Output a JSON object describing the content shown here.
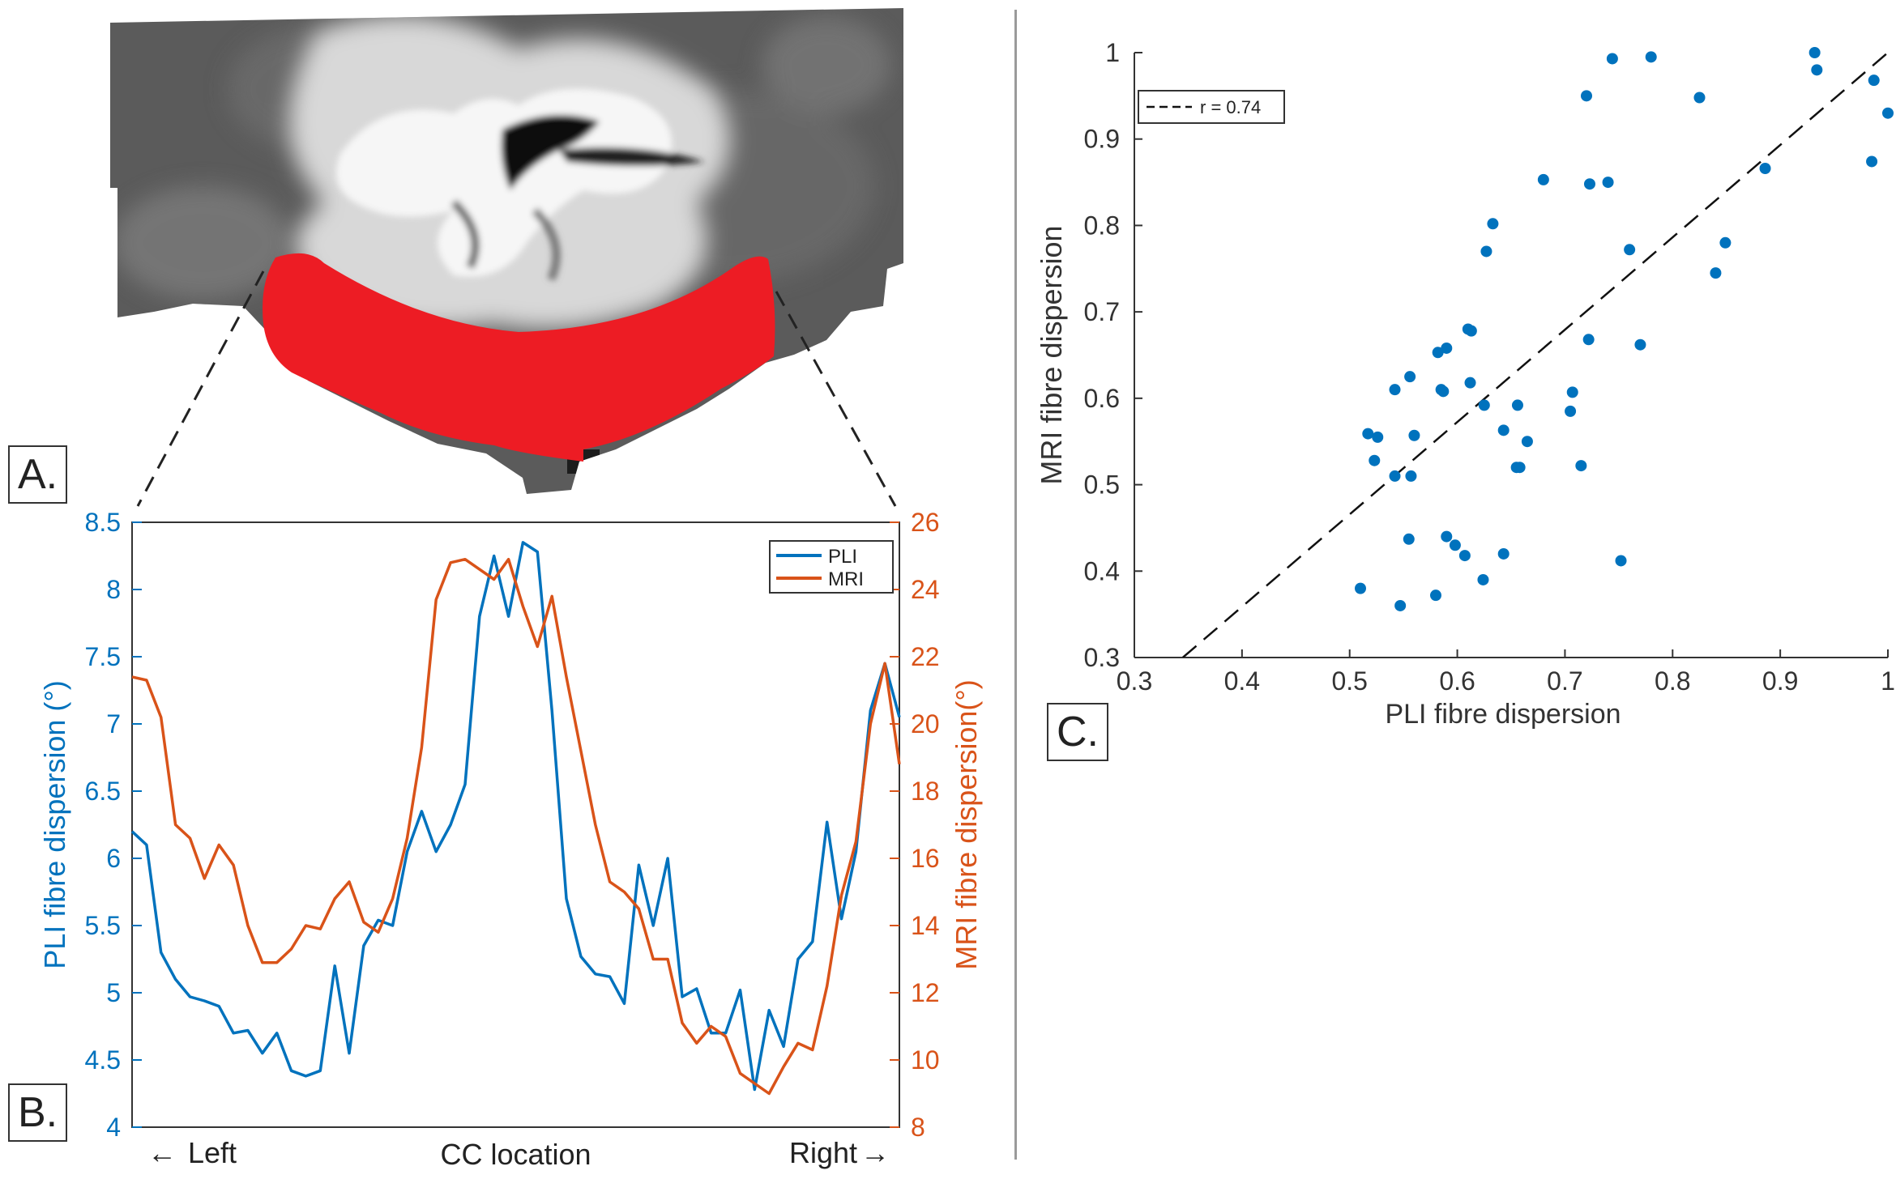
{
  "panels": {
    "a_label": "A.",
    "b_label": "B.",
    "c_label": "C."
  },
  "colors": {
    "pli": "#0072BD",
    "mri": "#D95319",
    "roi": "#ed1c24",
    "axis": "#333333",
    "scatter": "#0072BD"
  },
  "chart_data": [
    {
      "type": "line",
      "id": "panel-b",
      "xlabel": "CC location",
      "x_left_label": "Left",
      "x_right_label": "Right",
      "left_arrow": "←",
      "right_arrow": "→",
      "ylabel_left": "PLI fibre dispersion (°)",
      "ylabel_right": "MRI fibre dispersion(°)",
      "ylim_left": [
        4,
        8.5
      ],
      "ylim_right": [
        8,
        26
      ],
      "yticks_left": [
        "4",
        "4.5",
        "5",
        "5.5",
        "6",
        "6.5",
        "7",
        "7.5",
        "8",
        "8.5"
      ],
      "yticks_right": [
        "8",
        "10",
        "12",
        "14",
        "16",
        "18",
        "20",
        "22",
        "24",
        "26"
      ],
      "legend": [
        "PLI",
        "MRI"
      ],
      "series": [
        {
          "name": "PLI",
          "axis": "left",
          "values": [
            6.2,
            6.1,
            5.3,
            5.1,
            4.97,
            4.94,
            4.9,
            4.7,
            4.72,
            4.55,
            4.7,
            4.42,
            4.38,
            4.42,
            5.2,
            4.55,
            5.35,
            5.54,
            5.5,
            6.05,
            6.35,
            6.05,
            6.25,
            6.55,
            7.8,
            8.25,
            7.8,
            8.35,
            8.28,
            7.1,
            5.7,
            5.27,
            5.14,
            5.12,
            4.92,
            5.95,
            5.5,
            6.0,
            4.97,
            5.03,
            4.7,
            4.7,
            5.02,
            4.28,
            4.87,
            4.6,
            5.25,
            5.38,
            6.27,
            5.55,
            6.05,
            7.1,
            7.45,
            7.05
          ]
        },
        {
          "name": "MRI",
          "axis": "right",
          "values": [
            21.4,
            21.3,
            20.2,
            17.0,
            16.6,
            15.4,
            16.4,
            15.8,
            14.0,
            12.9,
            12.9,
            13.3,
            14.0,
            13.9,
            14.8,
            15.3,
            14.1,
            13.8,
            14.8,
            16.6,
            19.3,
            23.7,
            24.8,
            24.9,
            24.6,
            24.3,
            24.9,
            23.5,
            22.3,
            23.8,
            21.4,
            19.2,
            17.0,
            15.3,
            15.0,
            14.5,
            13.0,
            13.0,
            11.1,
            10.5,
            11.0,
            10.7,
            9.6,
            9.3,
            9.0,
            9.8,
            10.5,
            10.3,
            12.2,
            14.9,
            16.5,
            20.0,
            21.8,
            18.8
          ]
        }
      ]
    },
    {
      "type": "scatter",
      "id": "panel-c",
      "xlabel": "PLI fibre dispersion",
      "ylabel": "MRI fibre dispersion",
      "xlim": [
        0.3,
        1.0
      ],
      "ylim": [
        0.3,
        1.0
      ],
      "xticks": [
        "0.3",
        "0.4",
        "0.5",
        "0.6",
        "0.7",
        "0.8",
        "0.9",
        "1"
      ],
      "yticks": [
        "0.3",
        "0.4",
        "0.5",
        "0.6",
        "0.7",
        "0.8",
        "0.9",
        "1"
      ],
      "legend": [
        "r = 0.74"
      ],
      "fit_line": {
        "label": "r = 0.74",
        "x": [
          0.345,
          1.0
        ],
        "y": [
          0.3,
          1.0
        ]
      },
      "points": {
        "x": [
          0.744,
          0.78,
          0.932,
          0.934,
          0.987,
          1.0,
          0.72,
          0.825,
          0.985,
          0.68,
          0.723,
          0.74,
          0.886,
          0.633,
          0.627,
          0.76,
          0.849,
          0.84,
          0.61,
          0.613,
          0.722,
          0.77,
          0.59,
          0.582,
          0.556,
          0.542,
          0.612,
          0.587,
          0.707,
          0.585,
          0.656,
          0.625,
          0.665,
          0.705,
          0.517,
          0.526,
          0.56,
          0.643,
          0.523,
          0.658,
          0.655,
          0.715,
          0.542,
          0.557,
          0.59,
          0.555,
          0.598,
          0.607,
          0.643,
          0.752,
          0.624,
          0.51,
          0.58,
          0.547
        ],
        "y": [
          0.993,
          0.995,
          1.0,
          0.98,
          0.968,
          0.93,
          0.95,
          0.948,
          0.874,
          0.853,
          0.848,
          0.85,
          0.866,
          0.802,
          0.77,
          0.772,
          0.78,
          0.745,
          0.68,
          0.678,
          0.668,
          0.662,
          0.658,
          0.653,
          0.625,
          0.61,
          0.618,
          0.608,
          0.607,
          0.61,
          0.592,
          0.592,
          0.55,
          0.585,
          0.559,
          0.555,
          0.557,
          0.563,
          0.528,
          0.52,
          0.52,
          0.522,
          0.51,
          0.51,
          0.44,
          0.437,
          0.43,
          0.418,
          0.42,
          0.412,
          0.39,
          0.38,
          0.372,
          0.36
        ]
      }
    }
  ]
}
